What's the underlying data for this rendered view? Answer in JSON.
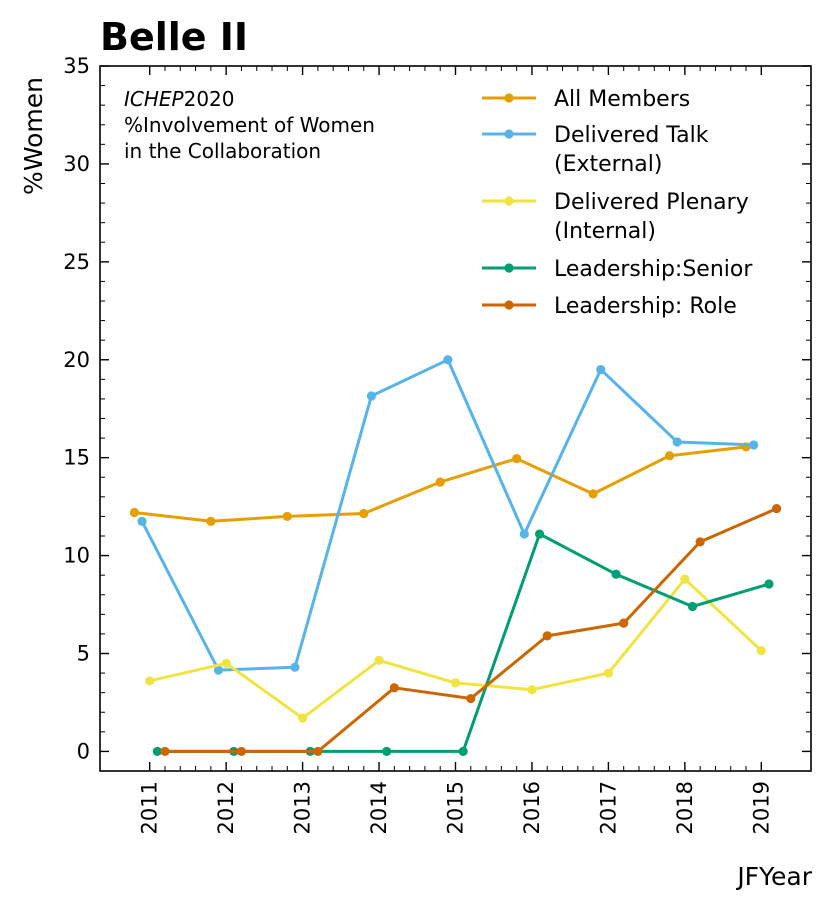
{
  "chart_data": {
    "type": "line",
    "title": "Belle II",
    "annotation": {
      "line1_italic": "ICHEP",
      "line1_rest": "2020",
      "line2": "%Involvement of Women",
      "line3": "in the Collaboration"
    },
    "xlabel": "JFYear",
    "ylabel": "%Women",
    "xlim": [
      2010.35,
      2019.65
    ],
    "ylim": [
      -1,
      35
    ],
    "xticks": [
      2011,
      2012,
      2013,
      2014,
      2015,
      2016,
      2017,
      2018,
      2019
    ],
    "xtick_labels": [
      "2011",
      "2012",
      "2013",
      "2014",
      "2015",
      "2016",
      "2017",
      "2018",
      "2019"
    ],
    "yticks": [
      0,
      5,
      10,
      15,
      20,
      25,
      30,
      35
    ],
    "ytick_labels": [
      "0",
      "5",
      "10",
      "15",
      "20",
      "25",
      "30",
      "35"
    ],
    "legend_position": "top-right",
    "grid": false,
    "series": [
      {
        "name": "All Members",
        "legend_lines": [
          "All Members"
        ],
        "color": "#E69F00",
        "x": [
          2010.8,
          2011.8,
          2012.8,
          2013.8,
          2014.8,
          2015.8,
          2016.8,
          2017.8,
          2018.8
        ],
        "y": [
          12.2,
          11.75,
          12.0,
          12.15,
          13.75,
          14.95,
          13.15,
          15.1,
          15.55
        ]
      },
      {
        "name": "Delivered Talk (External)",
        "legend_lines": [
          "Delivered Talk",
          "(External)"
        ],
        "color": "#56B4E9",
        "x": [
          2010.9,
          2011.9,
          2012.9,
          2013.9,
          2014.9,
          2015.9,
          2016.9,
          2017.9,
          2018.9
        ],
        "y": [
          11.75,
          4.15,
          4.3,
          18.15,
          20.0,
          11.1,
          19.5,
          15.8,
          15.65
        ]
      },
      {
        "name": "Delivered Plenary (Internal)",
        "legend_lines": [
          "Delivered Plenary",
          "(Internal)"
        ],
        "color": "#F0E442",
        "x": [
          2011.0,
          2012.0,
          2013.0,
          2014.0,
          2015.0,
          2016.0,
          2017.0,
          2018.0,
          2019.0
        ],
        "y": [
          3.6,
          4.5,
          1.7,
          4.65,
          3.5,
          3.15,
          4.0,
          8.8,
          5.15
        ]
      },
      {
        "name": "Leadership:Senior",
        "legend_lines": [
          "Leadership:Senior"
        ],
        "color": "#009E73",
        "x": [
          2011.1,
          2012.1,
          2013.1,
          2014.1,
          2015.1,
          2016.1,
          2017.1,
          2018.1,
          2019.1
        ],
        "y": [
          0,
          0,
          0,
          0,
          0,
          11.1,
          9.05,
          7.4,
          8.55
        ]
      },
      {
        "name": "Leadership: Role",
        "legend_lines": [
          "Leadership: Role"
        ],
        "color": "#CC6600",
        "x": [
          2011.2,
          2012.2,
          2013.2,
          2014.2,
          2015.2,
          2016.2,
          2017.2,
          2018.2,
          2019.2
        ],
        "y": [
          0,
          0,
          0,
          3.25,
          2.7,
          5.9,
          6.55,
          10.7,
          12.4
        ]
      }
    ]
  }
}
